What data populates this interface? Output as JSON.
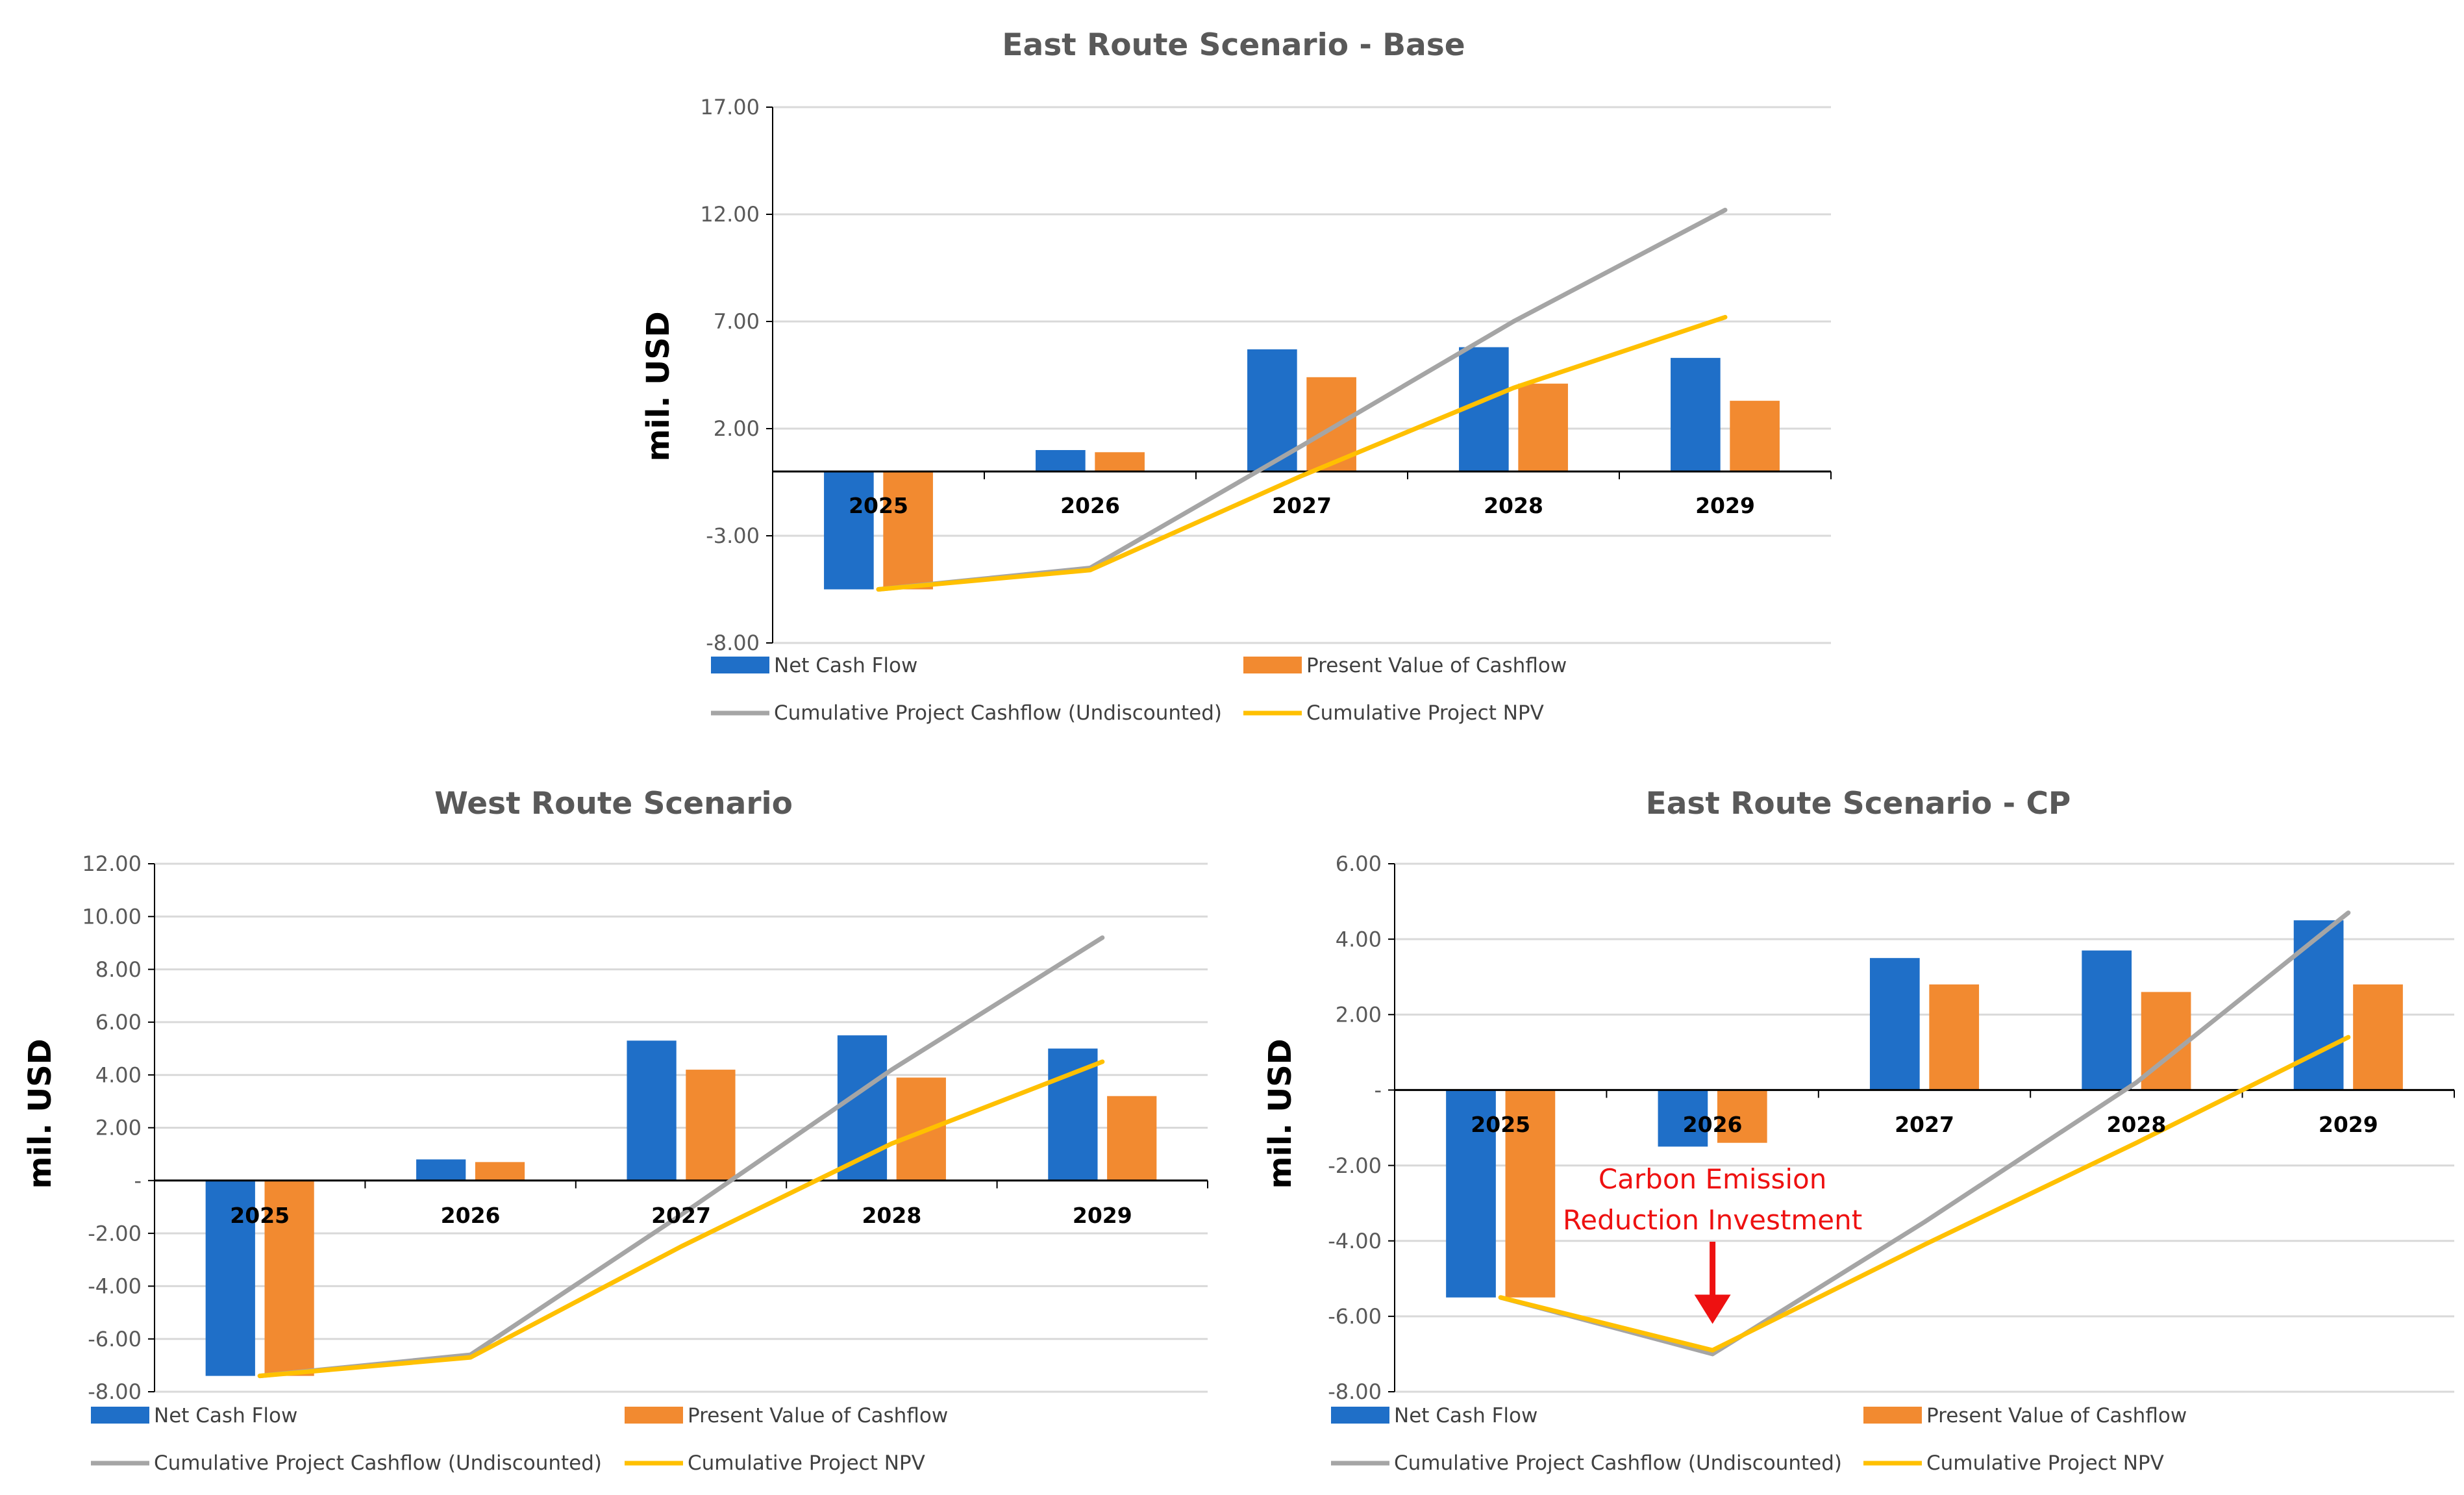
{
  "colors": {
    "net_cash_flow": "#1F6FC8",
    "present_value": "#F28A30",
    "cumulative_undiscounted": "#A5A5A5",
    "cumulative_npv": "#FFC000",
    "gridline": "#D9D9D9",
    "axis": "#000000",
    "annotation": "#EE1111"
  },
  "legend": {
    "net_cash_flow": "Net Cash Flow",
    "present_value": "Present Value of Cashflow",
    "cumulative_undiscounted": "Cumulative Project Cashflow (Undiscounted)",
    "cumulative_npv": "Cumulative Project NPV"
  },
  "chart_data": [
    {
      "id": "east-base",
      "type": "bar",
      "title": "East Route Scenario - Base",
      "ylabel": "mil. USD",
      "xlabel": "",
      "ylim": [
        -8,
        17
      ],
      "yticks": [
        17,
        12,
        7,
        2,
        -3,
        -8
      ],
      "ytick_labels": [
        "17.00",
        "12.00",
        "7.00",
        "2.00",
        "-3.00",
        "-8.00"
      ],
      "categories": [
        "2025",
        "2026",
        "2027",
        "2028",
        "2029"
      ],
      "grid": true,
      "legend_position": "bottom",
      "series": [
        {
          "name": "Net Cash Flow",
          "kind": "bar",
          "values": [
            -5.5,
            1.0,
            5.7,
            5.8,
            5.3
          ]
        },
        {
          "name": "Present Value of Cashflow",
          "kind": "bar",
          "values": [
            -5.5,
            0.9,
            4.4,
            4.1,
            3.3
          ]
        },
        {
          "name": "Cumulative Project Cashflow (Undiscounted)",
          "kind": "line",
          "values": [
            -5.5,
            -4.5,
            1.2,
            7.0,
            12.2
          ]
        },
        {
          "name": "Cumulative Project NPV",
          "kind": "line",
          "values": [
            -5.5,
            -4.6,
            -0.2,
            3.9,
            7.2
          ]
        }
      ]
    },
    {
      "id": "west",
      "type": "bar",
      "title": "West Route Scenario",
      "ylabel": "mil. USD",
      "xlabel": "",
      "ylim": [
        -8,
        12
      ],
      "yticks": [
        12,
        10,
        8,
        6,
        4,
        2,
        0,
        -2,
        -4,
        -6,
        -8
      ],
      "ytick_labels": [
        "12.00",
        "10.00",
        "8.00",
        "6.00",
        "4.00",
        "2.00",
        "-",
        "-2.00",
        "-4.00",
        "-6.00",
        "-8.00"
      ],
      "categories": [
        "2025",
        "2026",
        "2027",
        "2028",
        "2029"
      ],
      "grid": true,
      "legend_position": "bottom",
      "series": [
        {
          "name": "Net Cash Flow",
          "kind": "bar",
          "values": [
            -7.4,
            0.8,
            5.3,
            5.5,
            5.0
          ]
        },
        {
          "name": "Present Value of Cashflow",
          "kind": "bar",
          "values": [
            -7.4,
            0.7,
            4.2,
            3.9,
            3.2
          ]
        },
        {
          "name": "Cumulative Project Cashflow (Undiscounted)",
          "kind": "line",
          "values": [
            -7.4,
            -6.6,
            -1.3,
            4.2,
            9.2
          ]
        },
        {
          "name": "Cumulative Project NPV",
          "kind": "line",
          "values": [
            -7.4,
            -6.7,
            -2.5,
            1.4,
            4.5
          ]
        }
      ]
    },
    {
      "id": "east-cp",
      "type": "bar",
      "title": "East Route Scenario - CP",
      "ylabel": "mil. USD",
      "xlabel": "",
      "ylim": [
        -8,
        6
      ],
      "yticks": [
        6,
        4,
        2,
        0,
        -2,
        -4,
        -6,
        -8
      ],
      "ytick_labels": [
        "6.00",
        "4.00",
        "2.00",
        "-",
        "-2.00",
        "-4.00",
        "-6.00",
        "-8.00"
      ],
      "categories": [
        "2025",
        "2026",
        "2027",
        "2028",
        "2029"
      ],
      "grid": true,
      "legend_position": "bottom",
      "annotation": {
        "lines": [
          "Carbon Emission",
          "Reduction Investment"
        ],
        "category": "2026",
        "arrow_target_value": -6.2
      },
      "series": [
        {
          "name": "Net Cash Flow",
          "kind": "bar",
          "values": [
            -5.5,
            -1.5,
            3.5,
            3.7,
            4.5
          ]
        },
        {
          "name": "Present Value of Cashflow",
          "kind": "bar",
          "values": [
            -5.5,
            -1.4,
            2.8,
            2.6,
            2.8
          ]
        },
        {
          "name": "Cumulative Project Cashflow (Undiscounted)",
          "kind": "line",
          "values": [
            -5.5,
            -7.0,
            -3.5,
            0.2,
            4.7
          ]
        },
        {
          "name": "Cumulative Project NPV",
          "kind": "line",
          "values": [
            -5.5,
            -6.9,
            -4.1,
            -1.4,
            1.4
          ]
        }
      ]
    }
  ]
}
